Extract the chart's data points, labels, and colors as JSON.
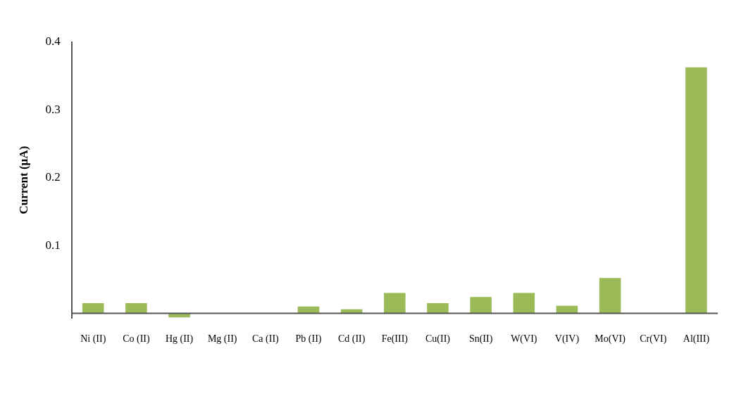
{
  "chart_data": {
    "type": "bar",
    "ylabel": "Current (µA)",
    "categories": [
      "Ni (II)",
      "Co (II)",
      "Hg (II)",
      "Mg (II)",
      "Ca (II)",
      "Pb (II)",
      "Cd (II)",
      "Fe(III)",
      "Cu(II)",
      "Sn(II)",
      "W(VI)",
      "V(IV)",
      "Mo(VI)",
      "Cr(VI)",
      "Al(III)"
    ],
    "values": [
      0.015,
      0.015,
      -0.006,
      0,
      0,
      0.01,
      0.006,
      0.03,
      0.015,
      0.024,
      0.03,
      0.011,
      0.052,
      0,
      0.363
    ],
    "color": "#9bbb59",
    "ylim": [
      -0.007,
      0.4
    ],
    "yticks": [
      0.1,
      0.2,
      0.3,
      0.4
    ],
    "grid": false,
    "legend": false
  }
}
